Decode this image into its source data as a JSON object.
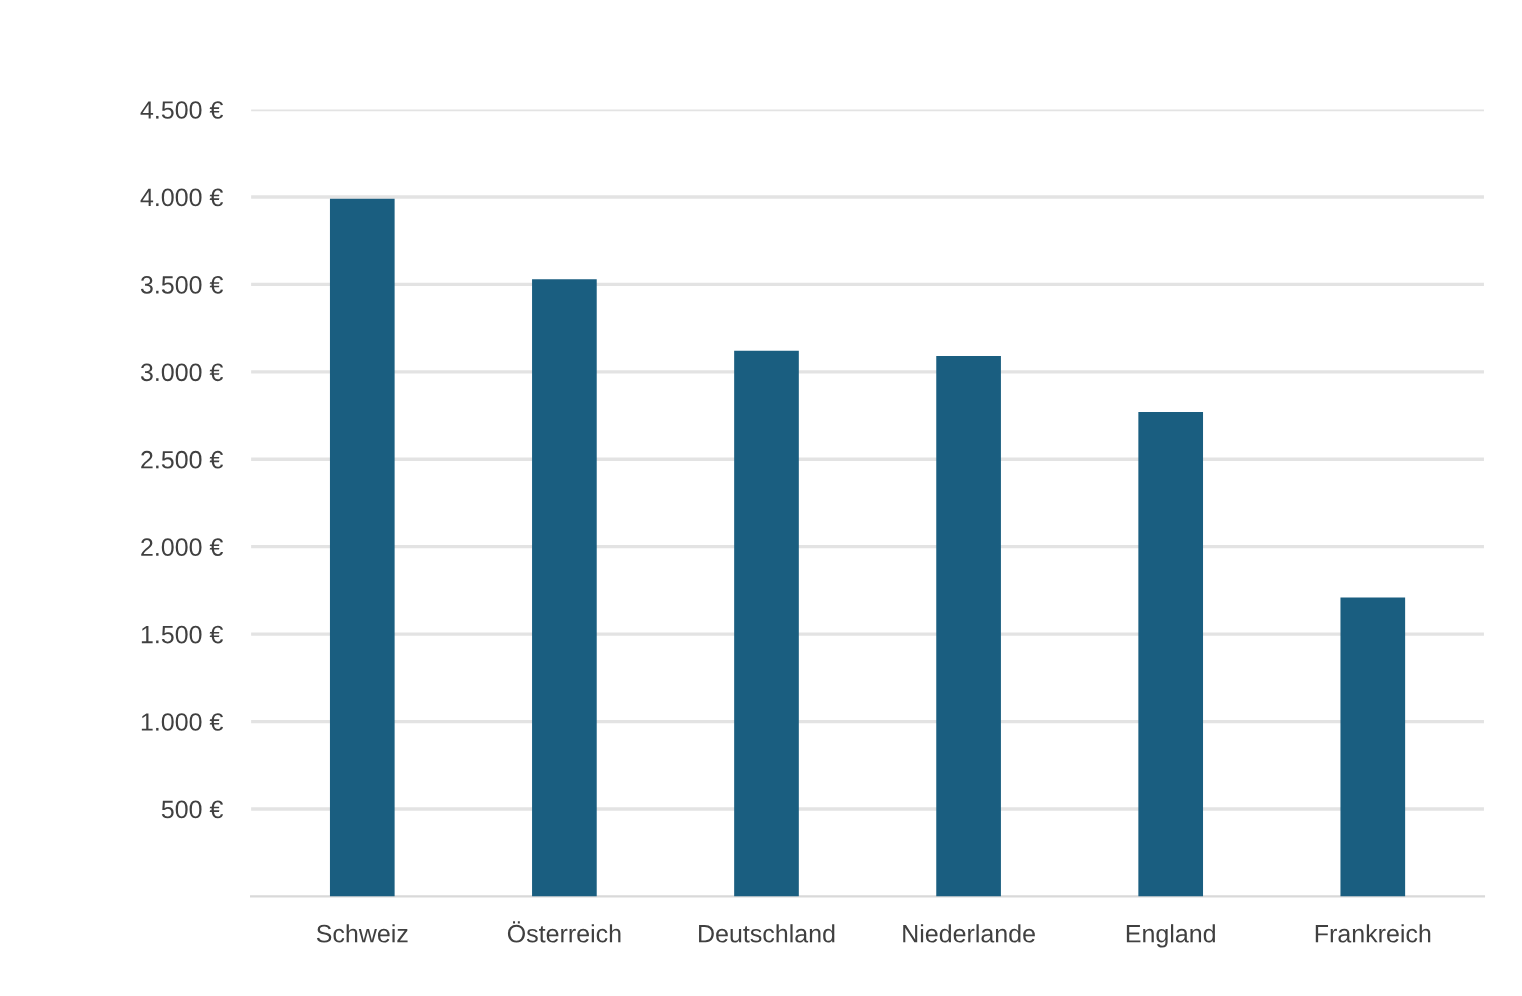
{
  "chart_data": {
    "type": "bar",
    "categories": [
      "Schweiz",
      "Österreich",
      "Deutschland",
      "Niederlande",
      "England",
      "Frankreich"
    ],
    "values": [
      3990,
      3530,
      3120,
      3090,
      2770,
      1710
    ],
    "color": "#1a5e80",
    "ylim": [
      0,
      4500
    ],
    "yticks": [
      {
        "value": 500,
        "label": "500 €"
      },
      {
        "value": 1000,
        "label": "1.000 €"
      },
      {
        "value": 1500,
        "label": "1.500 €"
      },
      {
        "value": 2000,
        "label": "2.000 €"
      },
      {
        "value": 2500,
        "label": "2.500 €"
      },
      {
        "value": 3000,
        "label": "3.000 €"
      },
      {
        "value": 3500,
        "label": "3.500 €"
      },
      {
        "value": 4000,
        "label": "4.000 €"
      },
      {
        "value": 4500,
        "label": "4.500 €"
      }
    ],
    "grid": "y"
  }
}
